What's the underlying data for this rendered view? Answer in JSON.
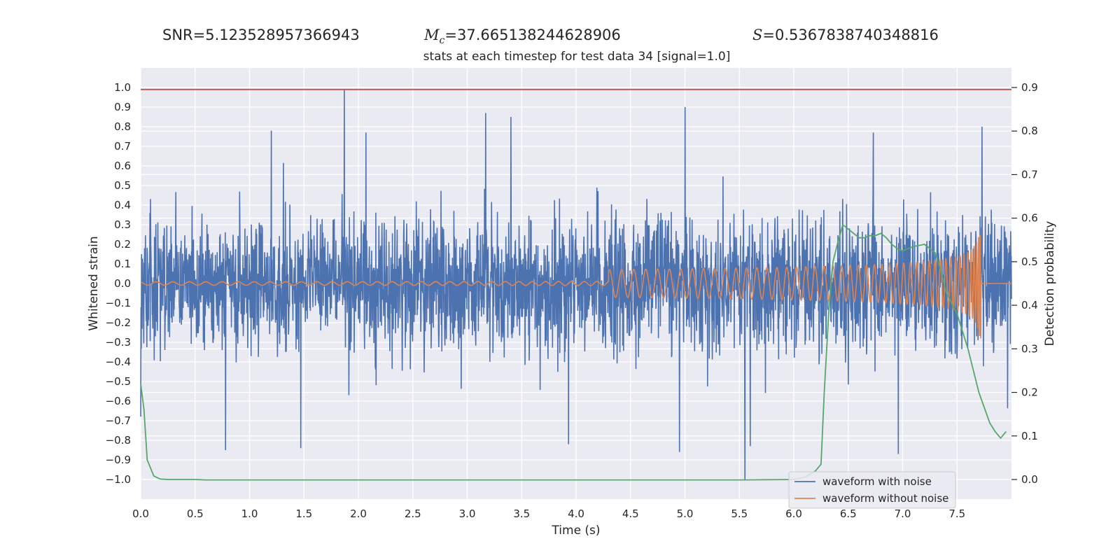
{
  "stats": {
    "snr_label": "SNR",
    "snr_value": "5.123528957366943",
    "mc_symbol": "M",
    "mc_sub": "c",
    "mc_value": "37.665138244628906",
    "s_symbol": "S",
    "s_value": "0.5367838740348816"
  },
  "chart_data": {
    "type": "line",
    "title": "stats at each timestep for test data 34 [signal=1.0]",
    "xlabel": "Time (s)",
    "ylabel": "Whitened strain",
    "y2label": "Detection probability",
    "xlim": [
      0,
      8.0
    ],
    "ylim": [
      -1.1,
      1.1
    ],
    "y2lim": [
      -0.045,
      0.945
    ],
    "xticks": [
      "0.0",
      "0.5",
      "1.0",
      "1.5",
      "2.0",
      "2.5",
      "3.0",
      "3.5",
      "4.0",
      "4.5",
      "5.0",
      "5.5",
      "6.0",
      "6.5",
      "7.0",
      "7.5"
    ],
    "yticks": [
      "1.0",
      "0.9",
      "0.8",
      "0.7",
      "0.6",
      "0.5",
      "0.4",
      "0.3",
      "0.2",
      "0.1",
      "0.0",
      "−0.1",
      "−0.2",
      "−0.3",
      "−0.4",
      "−0.5",
      "−0.6",
      "−0.7",
      "−0.8",
      "−0.9",
      "−1.0"
    ],
    "y2ticks": [
      "0.9",
      "0.8",
      "0.7",
      "0.6",
      "0.5",
      "0.4",
      "0.3",
      "0.2",
      "0.1",
      "0.0"
    ],
    "grid": true,
    "legend_position": "lower-right",
    "threshold_line": {
      "y": 0.99,
      "color": "#c44e52"
    },
    "series": [
      {
        "name": "waveform with noise",
        "color": "#4c72b0",
        "noise_sigma": 0.17,
        "spikes": [
          [
            1.87,
            0.99
          ],
          [
            5.55,
            -1.0
          ],
          [
            5.0,
            0.9
          ],
          [
            3.17,
            0.87
          ],
          [
            3.4,
            0.85
          ],
          [
            4.95,
            -0.86
          ],
          [
            1.47,
            -0.84
          ],
          [
            0.78,
            -0.85
          ],
          [
            6.96,
            -0.87
          ],
          [
            7.73,
            0.8
          ],
          [
            6.73,
            0.77
          ],
          [
            1.2,
            0.78
          ],
          [
            2.07,
            0.77
          ],
          [
            3.93,
            -0.82
          ],
          [
            5.6,
            -0.83
          ]
        ]
      },
      {
        "name": "waveform without noise",
        "color": "#dd8452",
        "chirp_end": 7.72,
        "chirp_peak": 0.29
      },
      {
        "name": "",
        "color": "#55a868",
        "axis": "right",
        "x": [
          0.0,
          0.03,
          0.06,
          0.12,
          0.18,
          0.25,
          0.5,
          0.6,
          1.0,
          2.0,
          3.0,
          4.0,
          5.0,
          5.5,
          6.0,
          6.1,
          6.2,
          6.25,
          6.28,
          6.32,
          6.36,
          6.4,
          6.45,
          6.5,
          6.55,
          6.6,
          6.65,
          6.7,
          6.75,
          6.8,
          6.85,
          6.9,
          6.95,
          7.0,
          7.1,
          7.2,
          7.25,
          7.3,
          7.35,
          7.4,
          7.5,
          7.6,
          7.7,
          7.8,
          7.85,
          7.9,
          7.95
        ],
        "y": [
          0.22,
          0.16,
          0.045,
          0.008,
          0.001,
          0.0,
          0.0,
          -0.001,
          -0.001,
          -0.001,
          -0.001,
          -0.001,
          -0.001,
          -0.001,
          0.0,
          0.005,
          0.02,
          0.035,
          0.2,
          0.38,
          0.5,
          0.54,
          0.585,
          0.575,
          0.565,
          0.555,
          0.555,
          0.56,
          0.56,
          0.565,
          0.555,
          0.54,
          0.53,
          0.525,
          0.535,
          0.54,
          0.53,
          0.52,
          0.48,
          0.43,
          0.38,
          0.3,
          0.2,
          0.13,
          0.11,
          0.095,
          0.11
        ]
      }
    ]
  }
}
